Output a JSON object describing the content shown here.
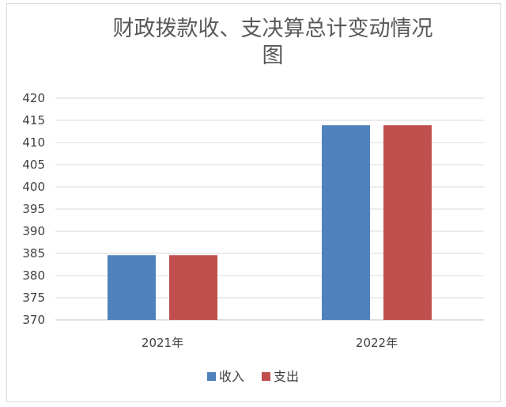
{
  "chart_data": {
    "type": "bar",
    "title_lines": [
      "财政拨款收、支决算总计变动情况",
      "图"
    ],
    "categories": [
      "2021年",
      "2022年"
    ],
    "series": [
      {
        "name": "收入",
        "values": [
          384.6,
          413.9
        ],
        "color": "#4F81BD"
      },
      {
        "name": "支出",
        "values": [
          384.6,
          413.9
        ],
        "color": "#C0504D"
      }
    ],
    "ylim": [
      370,
      420
    ],
    "yticks": [
      "420",
      "415",
      "410",
      "405",
      "400",
      "395",
      "390",
      "385",
      "380",
      "375",
      "370"
    ],
    "grid": true,
    "legend_position": "bottom"
  }
}
